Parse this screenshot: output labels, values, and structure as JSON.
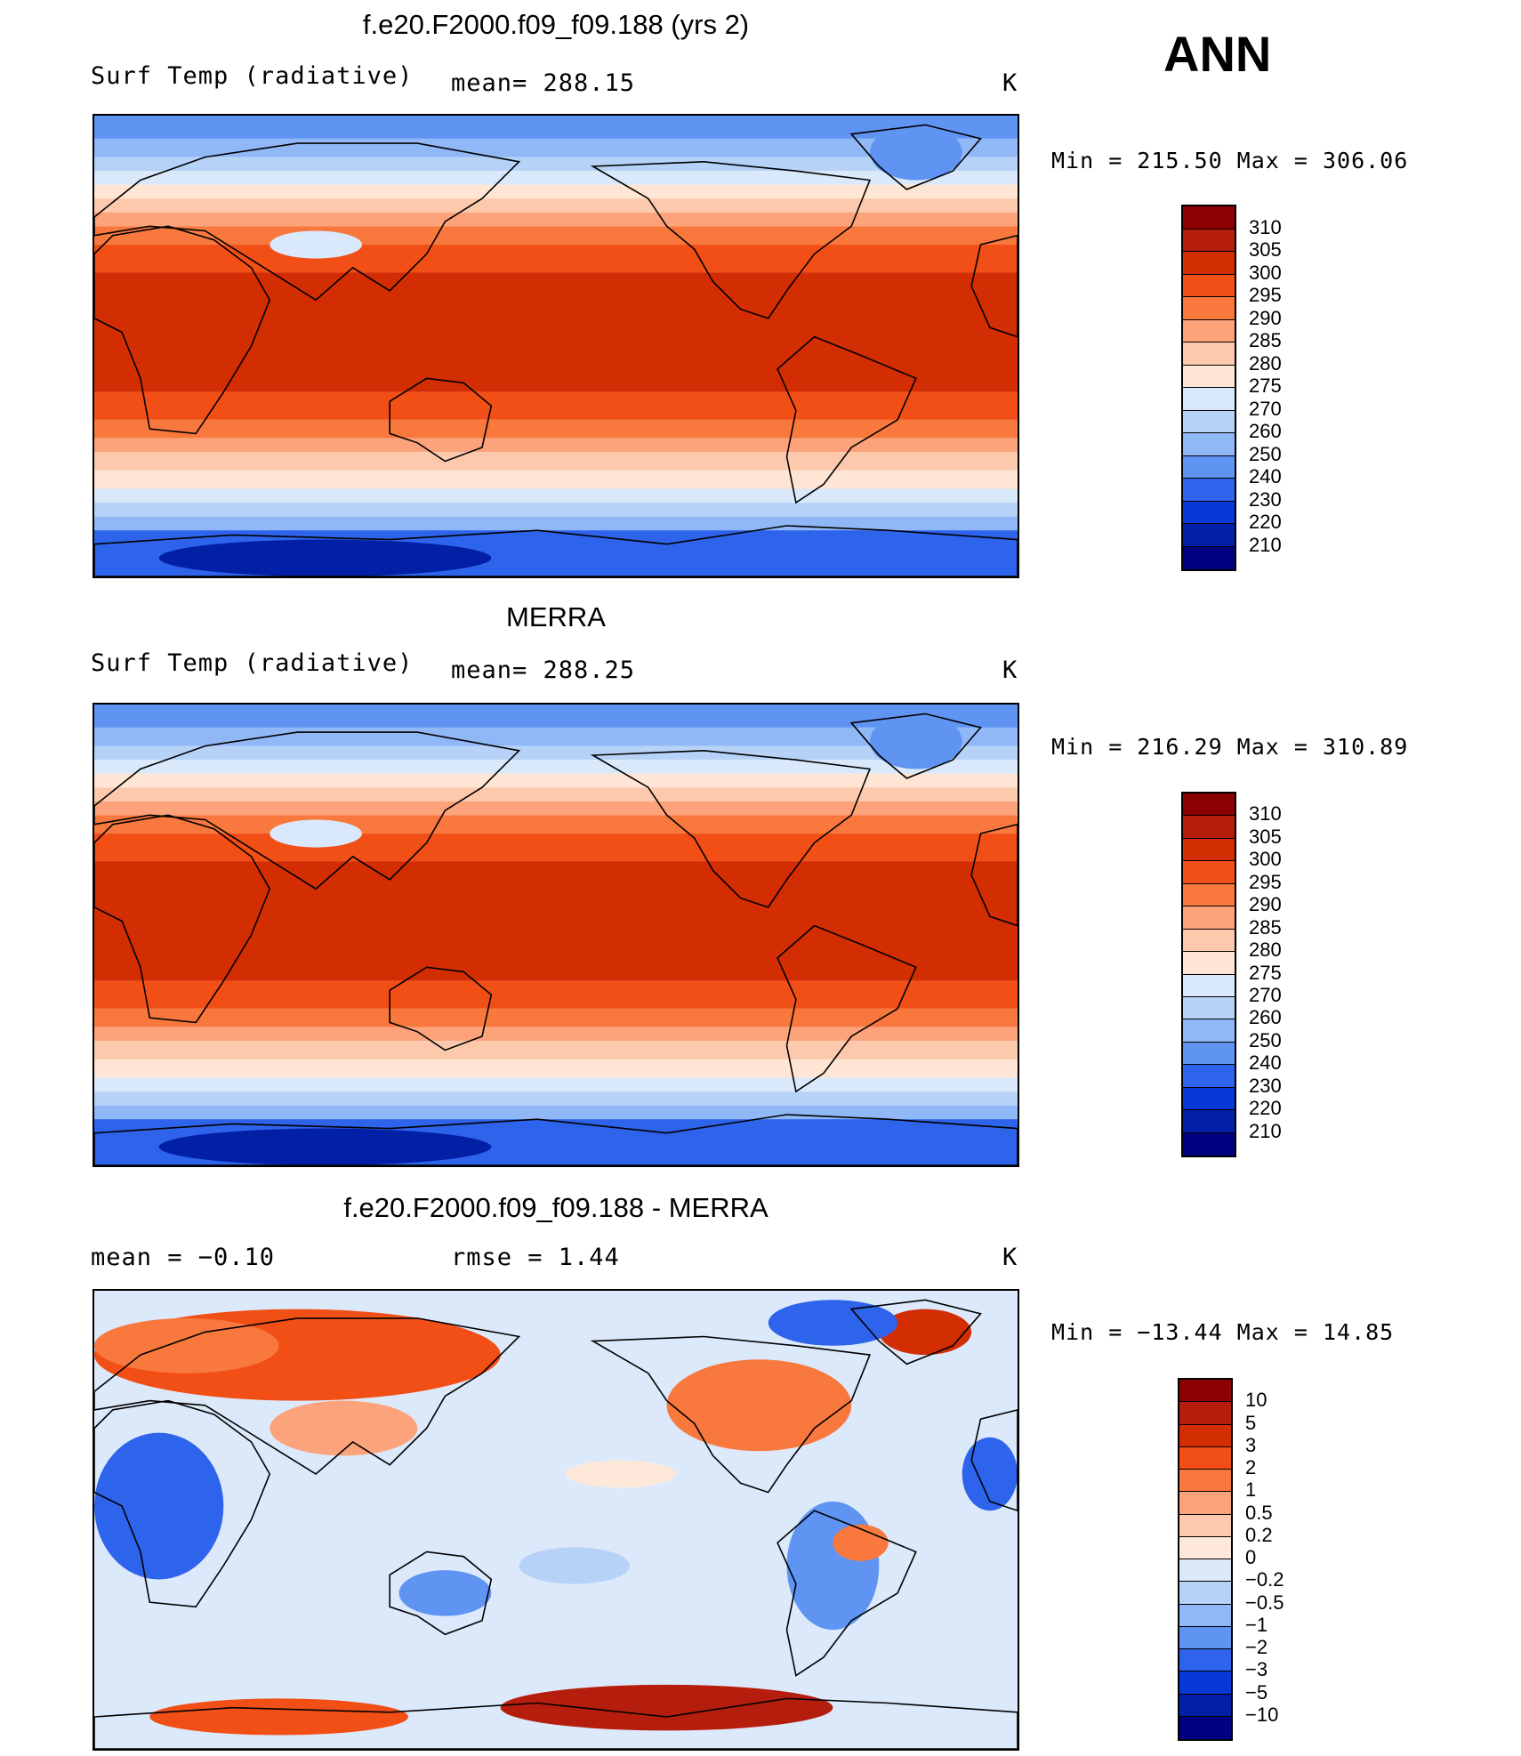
{
  "season": "ANN",
  "panels": [
    {
      "id": "model",
      "title": "f.e20.F2000.f09_f09.188 (yrs 2)",
      "left_label": "Surf Temp (radiative)",
      "center_label": "mean= 288.15",
      "units": "K",
      "minmax": "Min = 215.50 Max = 306.06",
      "palette": "abs",
      "ticks": [
        "310",
        "305",
        "300",
        "295",
        "290",
        "285",
        "280",
        "275",
        "270",
        "260",
        "250",
        "240",
        "230",
        "220",
        "210"
      ]
    },
    {
      "id": "obs",
      "title": "MERRA",
      "left_label": "Surf Temp (radiative)",
      "center_label": "mean= 288.25",
      "units": "K",
      "minmax": "Min = 216.29 Max = 310.89",
      "palette": "abs",
      "ticks": [
        "310",
        "305",
        "300",
        "295",
        "290",
        "285",
        "280",
        "275",
        "270",
        "260",
        "250",
        "240",
        "230",
        "220",
        "210"
      ]
    },
    {
      "id": "diff",
      "title": "f.e20.F2000.f09_f09.188 - MERRA",
      "left_label": "mean = −0.10",
      "center_label": "rmse = 1.44",
      "units": "K",
      "minmax": "Min = −13.44 Max = 14.85",
      "palette": "diff",
      "ticks": [
        "10",
        "5",
        "3",
        "2",
        "1",
        "0.5",
        "0.2",
        "0",
        "−0.2",
        "−0.5",
        "−1",
        "−2",
        "−3",
        "−5",
        "−10"
      ]
    }
  ],
  "colors": {
    "abs": [
      "#8b0000",
      "#b51e0c",
      "#d32d04",
      "#f24f17",
      "#f8783d",
      "#fca37c",
      "#fcc9ac",
      "#fee5d4",
      "#d9e8fa",
      "#b7d2f7",
      "#90b8f7",
      "#5f94f3",
      "#2e63eb",
      "#0839d6",
      "#0220a6",
      "#000080"
    ],
    "diff": [
      "#8b0000",
      "#b51e0c",
      "#d32d04",
      "#f24f17",
      "#f8783d",
      "#fca37c",
      "#fcc9ac",
      "#fee8da",
      "#dce9fa",
      "#b7d2f7",
      "#90b8f7",
      "#5f94f3",
      "#2e63eb",
      "#0839d6",
      "#0220a6",
      "#000080"
    ]
  }
}
